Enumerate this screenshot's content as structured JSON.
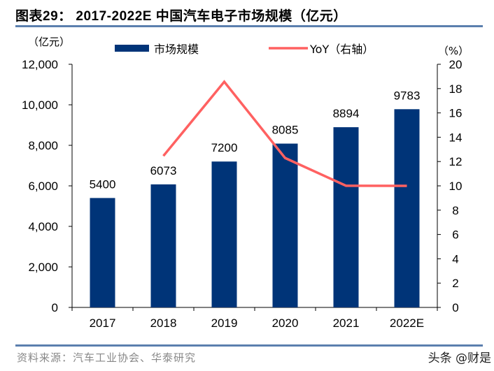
{
  "header": {
    "title": "图表29： 2017-2022E 中国汽车电子市场规模（亿元）"
  },
  "footer": {
    "source": "资料来源：汽车工业协会、华泰研究",
    "watermark": "头条 @财是"
  },
  "chart_data": {
    "type": "bar",
    "title": "2017-2022E 中国汽车电子市场规模（亿元）",
    "categories": [
      "2017",
      "2018",
      "2019",
      "2020",
      "2021",
      "2022E"
    ],
    "series": [
      {
        "name": "市场规模",
        "type": "bar",
        "axis": "left",
        "color": "#003478",
        "values": [
          5400,
          6073,
          7200,
          8085,
          8894,
          9783
        ],
        "data_labels": [
          "5400",
          "6073",
          "7200",
          "8085",
          "8894",
          "9783"
        ]
      },
      {
        "name": "YoY（右轴）",
        "type": "line",
        "axis": "right",
        "color": "#ff6161",
        "values": [
          null,
          12.46,
          18.56,
          12.29,
          10.01,
          10.0
        ]
      }
    ],
    "y_left": {
      "unit_label": "（亿元）",
      "ylim": [
        0,
        12000
      ],
      "ticks": [
        0,
        2000,
        4000,
        6000,
        8000,
        10000,
        12000
      ],
      "tick_labels": [
        "0",
        "2,000",
        "4,000",
        "6,000",
        "8,000",
        "10,000",
        "12,000"
      ]
    },
    "y_right": {
      "unit_label": "（%）",
      "ylim": [
        0,
        20
      ],
      "ticks": [
        0,
        2,
        4,
        6,
        8,
        10,
        12,
        14,
        16,
        18,
        20
      ],
      "tick_labels": [
        "0",
        "2",
        "4",
        "6",
        "8",
        "10",
        "12",
        "14",
        "16",
        "18",
        "20"
      ]
    },
    "legend": {
      "position": "top",
      "entries": [
        {
          "label": "市场规模",
          "marker": "bar",
          "color": "#003478"
        },
        {
          "label": "YoY（右轴）",
          "marker": "line",
          "color": "#ff6161"
        }
      ]
    },
    "grid": false
  }
}
